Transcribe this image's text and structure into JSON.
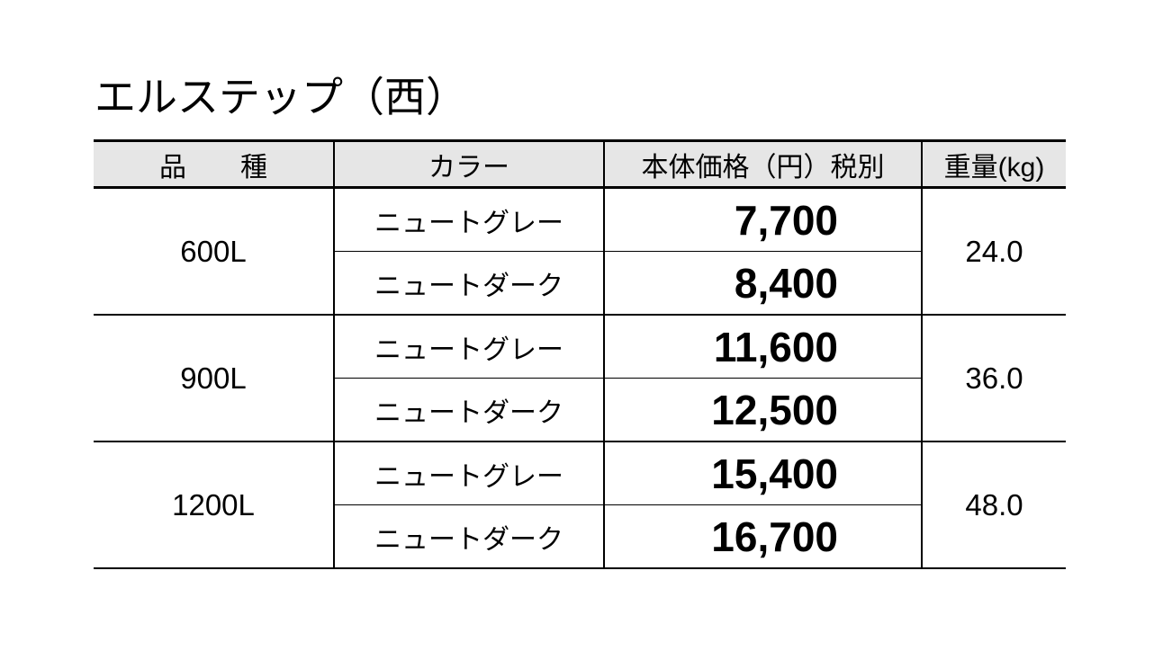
{
  "title": "エルステップ（西）",
  "headers": [
    "品　　種",
    "カラー",
    "本体価格（円）税別",
    "重量(kg)"
  ],
  "products": [
    {
      "size": "600L",
      "weight": "24.0",
      "variants": [
        {
          "color": "ニュートグレー",
          "price": "7,700"
        },
        {
          "color": "ニュートダーク",
          "price": "8,400"
        }
      ]
    },
    {
      "size": "900L",
      "weight": "36.0",
      "variants": [
        {
          "color": "ニュートグレー",
          "price": "11,600"
        },
        {
          "color": "ニュートダーク",
          "price": "12,500"
        }
      ]
    },
    {
      "size": "1200L",
      "weight": "48.0",
      "variants": [
        {
          "color": "ニュートグレー",
          "price": "15,400"
        },
        {
          "color": "ニュートダーク",
          "price": "16,700"
        }
      ]
    }
  ]
}
